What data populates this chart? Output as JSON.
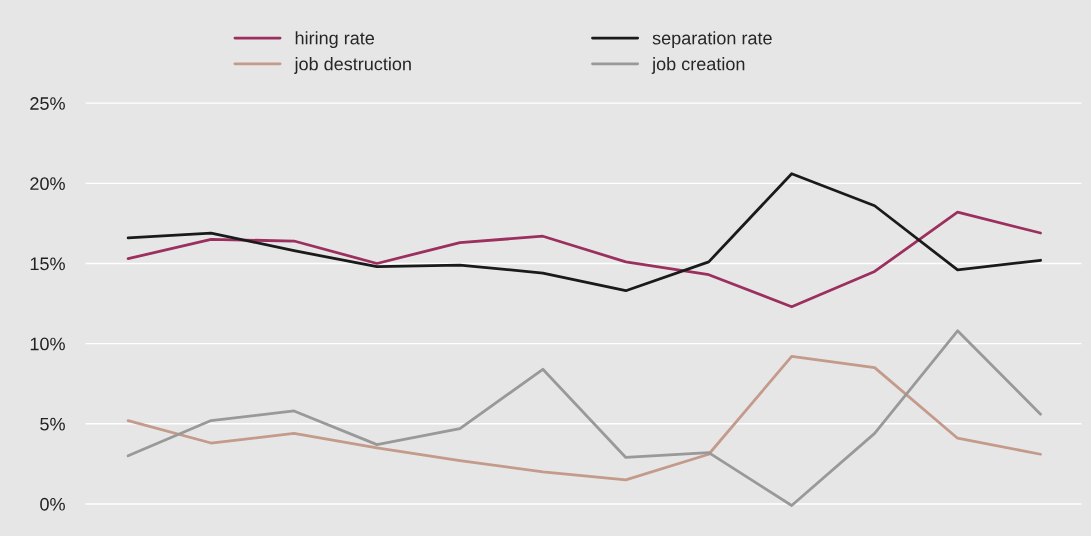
{
  "chart_data": {
    "type": "line",
    "categories": [
      null,
      null,
      null,
      null,
      null,
      null,
      null,
      null,
      null,
      null,
      null,
      null
    ],
    "series": [
      {
        "name": "hiring rate",
        "color": "#9b2f5e",
        "values": [
          15.3,
          16.5,
          16.4,
          15.0,
          16.3,
          16.7,
          15.1,
          14.3,
          12.3,
          14.5,
          18.2,
          16.9
        ]
      },
      {
        "name": "job destruction",
        "color": "#c49a8a",
        "values": [
          5.2,
          3.8,
          4.4,
          3.5,
          2.7,
          2.0,
          1.5,
          3.1,
          9.2,
          8.5,
          4.1,
          3.1
        ]
      },
      {
        "name": "separation rate",
        "color": "#1a1a1a",
        "values": [
          16.6,
          16.9,
          15.8,
          14.8,
          14.9,
          14.4,
          13.3,
          15.1,
          20.6,
          18.6,
          14.6,
          15.2
        ]
      },
      {
        "name": "job creation",
        "color": "#999999",
        "values": [
          3.0,
          5.2,
          5.8,
          3.7,
          4.7,
          8.4,
          2.9,
          3.2,
          -0.1,
          4.4,
          10.8,
          5.6
        ]
      }
    ],
    "ylim": [
      -2,
      30.5
    ],
    "yticks": [
      {
        "value": 0,
        "label": "0%"
      },
      {
        "value": 5,
        "label": "5%"
      },
      {
        "value": 10,
        "label": "10%"
      },
      {
        "value": 15,
        "label": "15%"
      },
      {
        "value": 20,
        "label": "20%"
      },
      {
        "value": 25,
        "label": "25%"
      }
    ],
    "grid": "y",
    "legend": "top",
    "tick_labels": "y",
    "marker": "none",
    "line_style": "solid"
  }
}
